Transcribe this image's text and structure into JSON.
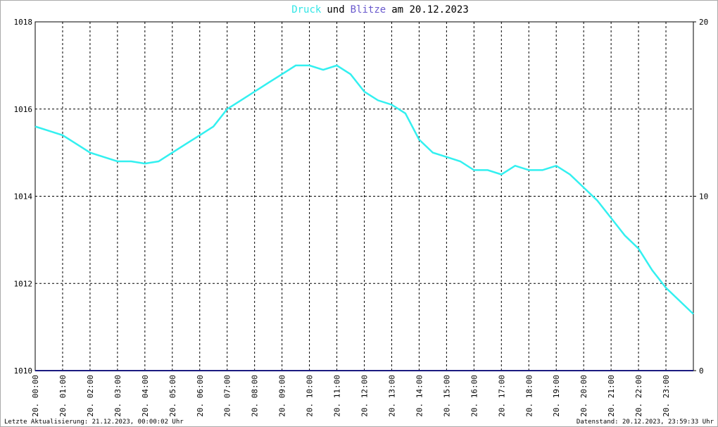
{
  "chart_data": {
    "type": "line",
    "title_parts": [
      {
        "text": "Druck",
        "color": "#33e6e6"
      },
      {
        "text": "und",
        "color": "#000000"
      },
      {
        "text": "Blitze",
        "color": "#6a5acd"
      },
      {
        "text": "am 20.12.2023",
        "color": "#000000"
      }
    ],
    "footer_left": "Letzte Aktualisierung: 21.12.2023, 00:00:02 Uhr",
    "footer_right": "Datenstand: 20.12.2023, 23:59:33 Uhr",
    "xlim": [
      0,
      24
    ],
    "xticks": [
      {
        "value": 0,
        "label": "20. 00:00"
      },
      {
        "value": 1,
        "label": "20. 01:00"
      },
      {
        "value": 2,
        "label": "20. 02:00"
      },
      {
        "value": 3,
        "label": "20. 03:00"
      },
      {
        "value": 4,
        "label": "20. 04:00"
      },
      {
        "value": 5,
        "label": "20. 05:00"
      },
      {
        "value": 6,
        "label": "20. 06:00"
      },
      {
        "value": 7,
        "label": "20. 07:00"
      },
      {
        "value": 8,
        "label": "20. 08:00"
      },
      {
        "value": 9,
        "label": "20. 09:00"
      },
      {
        "value": 10,
        "label": "20. 10:00"
      },
      {
        "value": 11,
        "label": "20. 11:00"
      },
      {
        "value": 12,
        "label": "20. 12:00"
      },
      {
        "value": 13,
        "label": "20. 13:00"
      },
      {
        "value": 14,
        "label": "20. 14:00"
      },
      {
        "value": 15,
        "label": "20. 15:00"
      },
      {
        "value": 16,
        "label": "20. 16:00"
      },
      {
        "value": 17,
        "label": "20. 17:00"
      },
      {
        "value": 18,
        "label": "20. 18:00"
      },
      {
        "value": 19,
        "label": "20. 19:00"
      },
      {
        "value": 20,
        "label": "20. 20:00"
      },
      {
        "value": 21,
        "label": "20. 21:00"
      },
      {
        "value": 22,
        "label": "20. 22:00"
      },
      {
        "value": 23,
        "label": "20. 23:00"
      }
    ],
    "ylim": [
      1010,
      1018
    ],
    "yticks": [
      1010,
      1012,
      1014,
      1016,
      1018
    ],
    "y2lim": [
      0,
      20
    ],
    "y2ticks": [
      0,
      10,
      20
    ],
    "grid": true,
    "series": [
      {
        "name": "Druck",
        "color": "#33f0f0",
        "x": [
          0,
          0.5,
          1,
          1.5,
          2,
          2.5,
          3,
          3.5,
          4,
          4.5,
          5,
          5.5,
          6,
          6.5,
          7,
          7.5,
          8,
          8.5,
          9,
          9.5,
          10,
          10.5,
          11,
          11.5,
          12,
          12.5,
          13,
          13.5,
          14,
          14.5,
          15,
          15.5,
          16,
          16.5,
          17,
          17.5,
          18,
          18.5,
          19,
          19.5,
          20,
          20.5,
          21,
          21.5,
          22,
          22.5,
          23,
          23.5,
          24
        ],
        "values": [
          1015.6,
          1015.5,
          1015.4,
          1015.2,
          1015.0,
          1014.9,
          1014.8,
          1014.8,
          1014.75,
          1014.8,
          1015.0,
          1015.2,
          1015.4,
          1015.6,
          1016.0,
          1016.2,
          1016.4,
          1016.6,
          1016.8,
          1017.0,
          1017.0,
          1016.9,
          1017.0,
          1016.8,
          1016.4,
          1016.2,
          1016.1,
          1015.9,
          1015.3,
          1015.0,
          1014.9,
          1014.8,
          1014.6,
          1014.6,
          1014.5,
          1014.7,
          1014.6,
          1014.6,
          1014.7,
          1014.5,
          1014.2,
          1013.9,
          1013.5,
          1013.1,
          1012.8,
          1012.3,
          1011.9,
          1011.6,
          1011.3
        ]
      },
      {
        "name": "Blitze",
        "color": "#1a1a80",
        "axis": "y2",
        "x": [
          0,
          24
        ],
        "values": [
          0,
          0
        ]
      }
    ]
  }
}
